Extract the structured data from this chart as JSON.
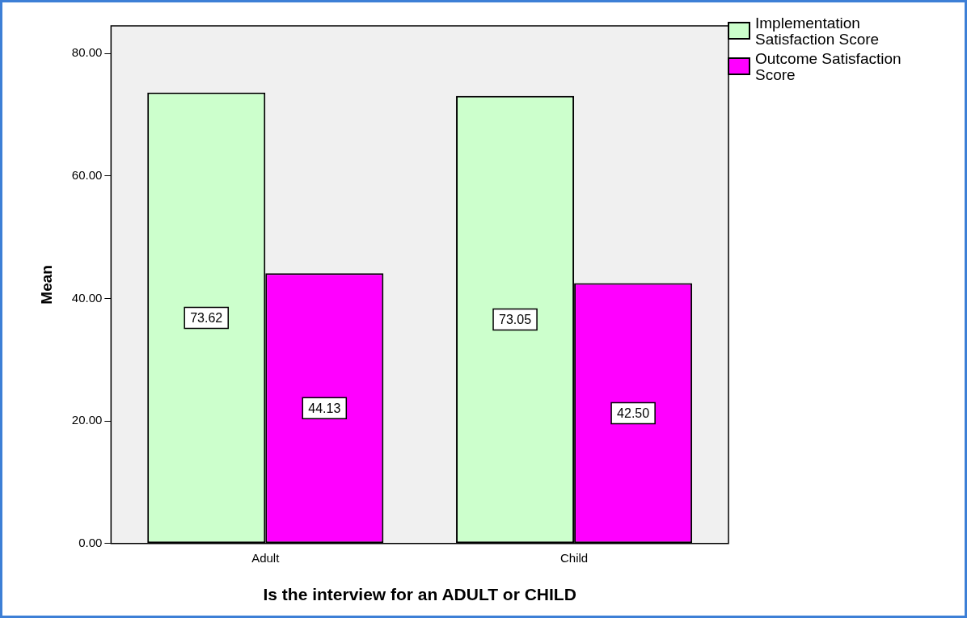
{
  "chart_data": {
    "type": "bar",
    "xlabel": "Is the interview for an ADULT or CHILD",
    "ylabel": "Mean",
    "categories": [
      "Adult",
      "Child"
    ],
    "series": [
      {
        "name": "Implementation Satisfaction Score",
        "color": "#ccffcc",
        "values": [
          73.62,
          73.05
        ],
        "value_labels": [
          "73.62",
          "73.05"
        ]
      },
      {
        "name": "Outcome Satisfaction Score",
        "color": "#ff00ff",
        "values": [
          44.13,
          42.5
        ],
        "value_labels": [
          "44.13",
          "42.50"
        ]
      }
    ],
    "ylim": [
      0,
      84.5
    ],
    "yticks": [
      {
        "value": 0,
        "label": "0.00"
      },
      {
        "value": 20,
        "label": "20.00"
      },
      {
        "value": 40,
        "label": "40.00"
      },
      {
        "value": 60,
        "label": "60.00"
      },
      {
        "value": 80,
        "label": "80.00"
      }
    ],
    "grid": false,
    "legend": "top right"
  }
}
